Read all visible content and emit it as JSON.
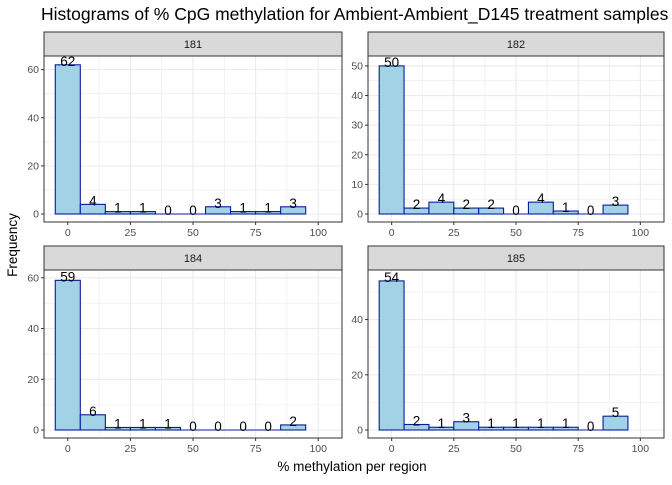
{
  "chart_data": {
    "type": "bar",
    "title": "Histograms of % CpG methylation for Ambient-Ambient_D145 treatment samples",
    "xlabel": "% methylation per region",
    "ylabel": "Frequency",
    "x_ticks": [
      0,
      25,
      50,
      75,
      100
    ],
    "bins": [
      0,
      10,
      20,
      30,
      40,
      50,
      60,
      70,
      80,
      90,
      100
    ],
    "colors": {
      "bar_fill": "#a1d2e6",
      "bar_stroke": "#0a1b9c",
      "strip_fill": "#d9d9d9",
      "grid": "#ebebeb"
    },
    "panels": [
      {
        "label": "181",
        "values": [
          62,
          4,
          1,
          1,
          0,
          0,
          3,
          1,
          1,
          3
        ],
        "y_ticks": [
          0,
          20,
          40,
          60
        ],
        "ylim": [
          0,
          64
        ]
      },
      {
        "label": "182",
        "values": [
          50,
          2,
          4,
          2,
          2,
          0,
          4,
          1,
          0,
          3
        ],
        "y_ticks": [
          0,
          10,
          20,
          30,
          40,
          50
        ],
        "ylim": [
          0,
          52
        ]
      },
      {
        "label": "184",
        "values": [
          59,
          6,
          1,
          1,
          1,
          0,
          0,
          0,
          0,
          2
        ],
        "y_ticks": [
          0,
          20,
          40,
          60
        ],
        "ylim": [
          0,
          61.5
        ]
      },
      {
        "label": "185",
        "values": [
          54,
          2,
          1,
          3,
          1,
          1,
          1,
          1,
          0,
          5
        ],
        "y_ticks": [
          0,
          20,
          40
        ],
        "ylim": [
          0,
          56.5
        ]
      }
    ]
  }
}
